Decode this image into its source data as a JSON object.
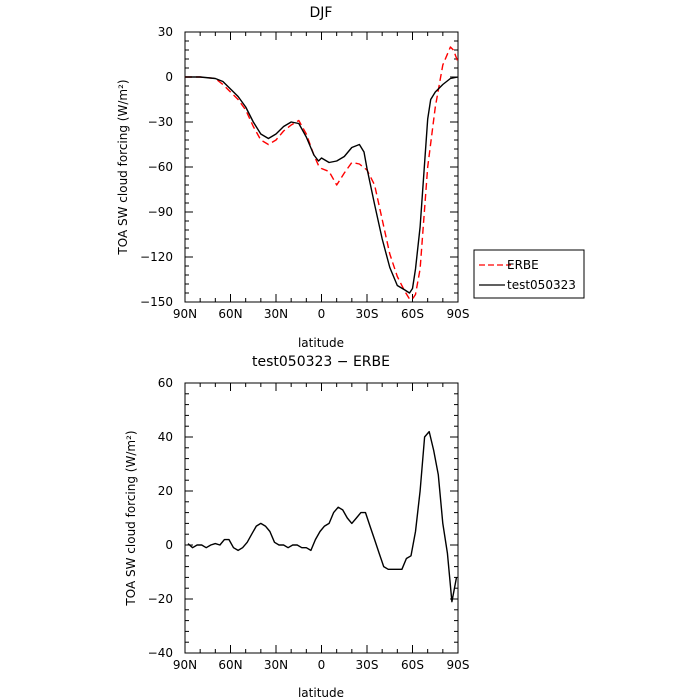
{
  "colors": {
    "erbe": "#ff0000",
    "model": "#000000",
    "axis": "#000000"
  },
  "chart_data": [
    {
      "type": "line",
      "title": "DJF",
      "xlabel": "latitude",
      "ylabel": "TOA SW cloud forcing (W/m²)",
      "xlim": [
        90,
        -90
      ],
      "ylim": [
        -150,
        30
      ],
      "grid": false,
      "legend_position": "right",
      "x_ticks": [
        {
          "v": 90,
          "label": "90N"
        },
        {
          "v": 60,
          "label": "60N"
        },
        {
          "v": 30,
          "label": "30N"
        },
        {
          "v": 0,
          "label": "0"
        },
        {
          "v": -30,
          "label": "30S"
        },
        {
          "v": -60,
          "label": "60S"
        },
        {
          "v": -90,
          "label": "90S"
        }
      ],
      "y_ticks": [
        {
          "v": 30,
          "label": "30"
        },
        {
          "v": 0,
          "label": "0"
        },
        {
          "v": -30,
          "label": "−30"
        },
        {
          "v": -60,
          "label": "−60"
        },
        {
          "v": -90,
          "label": "−90"
        },
        {
          "v": -120,
          "label": "−120"
        },
        {
          "v": -150,
          "label": "−150"
        }
      ],
      "series": [
        {
          "name": "ERBE",
          "style": "dashed",
          "color": "#ff0000",
          "x": [
            90,
            80,
            70,
            65,
            60,
            55,
            50,
            45,
            40,
            35,
            30,
            25,
            20,
            15,
            10,
            5,
            2,
            0,
            -5,
            -10,
            -15,
            -20,
            -25,
            -30,
            -35,
            -40,
            -45,
            -50,
            -55,
            -58,
            -60,
            -62,
            -65,
            -70,
            -75,
            -80,
            -85,
            -87,
            -90
          ],
          "y": [
            0,
            0,
            -1,
            -5,
            -10,
            -15,
            -22,
            -33,
            -42,
            -45,
            -42,
            -36,
            -32,
            -29,
            -38,
            -52,
            -59,
            -61,
            -63,
            -72,
            -64,
            -57,
            -58,
            -62,
            -72,
            -95,
            -118,
            -133,
            -143,
            -148,
            -148,
            -145,
            -128,
            -60,
            -20,
            8,
            20,
            18,
            10
          ]
        },
        {
          "name": "test050323",
          "style": "solid",
          "color": "#000000",
          "x": [
            90,
            80,
            70,
            65,
            60,
            55,
            50,
            45,
            40,
            35,
            30,
            25,
            20,
            15,
            10,
            5,
            2,
            0,
            -5,
            -10,
            -15,
            -20,
            -25,
            -28,
            -30,
            -35,
            -40,
            -45,
            -50,
            -55,
            -58,
            -60,
            -62,
            -65,
            -70,
            -72,
            -75,
            -80,
            -85,
            -90
          ],
          "y": [
            0,
            0,
            -1,
            -3,
            -8,
            -13,
            -20,
            -30,
            -38,
            -41,
            -38,
            -33,
            -30,
            -31,
            -40,
            -52,
            -56,
            -54,
            -57,
            -56,
            -53,
            -47,
            -45,
            -50,
            -61,
            -85,
            -108,
            -127,
            -139,
            -142,
            -144,
            -141,
            -128,
            -100,
            -28,
            -15,
            -10,
            -5,
            -1,
            0
          ]
        }
      ]
    },
    {
      "type": "line",
      "title": "test050323 − ERBE",
      "xlabel": "latitude",
      "ylabel": "TOA SW cloud forcing (W/m²)",
      "xlim": [
        90,
        -90
      ],
      "ylim": [
        -40,
        60
      ],
      "grid": false,
      "x_ticks": [
        {
          "v": 90,
          "label": "90N"
        },
        {
          "v": 60,
          "label": "60N"
        },
        {
          "v": 30,
          "label": "30N"
        },
        {
          "v": 0,
          "label": "0"
        },
        {
          "v": -30,
          "label": "30S"
        },
        {
          "v": -60,
          "label": "60S"
        },
        {
          "v": -90,
          "label": "90S"
        }
      ],
      "y_ticks": [
        {
          "v": 60,
          "label": "60"
        },
        {
          "v": 40,
          "label": "40"
        },
        {
          "v": 20,
          "label": "20"
        },
        {
          "v": 0,
          "label": "0"
        },
        {
          "v": -20,
          "label": "−20"
        },
        {
          "v": -40,
          "label": "−40"
        }
      ],
      "series": [
        {
          "style": "solid",
          "color": "#000000",
          "x": [
            88,
            85,
            82,
            79,
            76,
            73,
            70,
            67,
            64,
            61,
            58,
            55,
            52,
            49,
            46,
            43,
            40,
            37,
            34,
            31,
            28,
            25,
            22,
            19,
            16,
            13,
            10,
            7,
            4,
            1,
            -2,
            -5,
            -8,
            -11,
            -14,
            -17,
            -20,
            -23,
            -26,
            -29,
            -32,
            -35,
            -38,
            -41,
            -44,
            -47,
            -50,
            -53,
            -56,
            -59,
            -62,
            -65,
            -68,
            -71,
            -74,
            -77,
            -80,
            -83,
            -86,
            -89
          ],
          "y": [
            0.5,
            -1,
            0,
            0,
            -1,
            0,
            0.5,
            0,
            2,
            2,
            -1,
            -2,
            -1,
            1,
            4,
            7,
            8,
            7,
            5,
            1,
            0,
            0,
            -1,
            0,
            0,
            -1,
            -1,
            -2,
            2,
            5,
            7,
            8,
            12,
            14,
            13,
            10,
            8,
            10,
            12,
            12,
            7,
            2,
            -3,
            -8,
            -9,
            -9,
            -9,
            -9,
            -5,
            -4,
            5,
            20,
            40,
            42,
            35,
            26,
            8,
            -3,
            -21,
            -12
          ]
        }
      ]
    }
  ],
  "legend": [
    {
      "label": "ERBE",
      "style": "dashed",
      "color": "#ff0000"
    },
    {
      "label": "test050323",
      "style": "solid",
      "color": "#000000"
    }
  ]
}
